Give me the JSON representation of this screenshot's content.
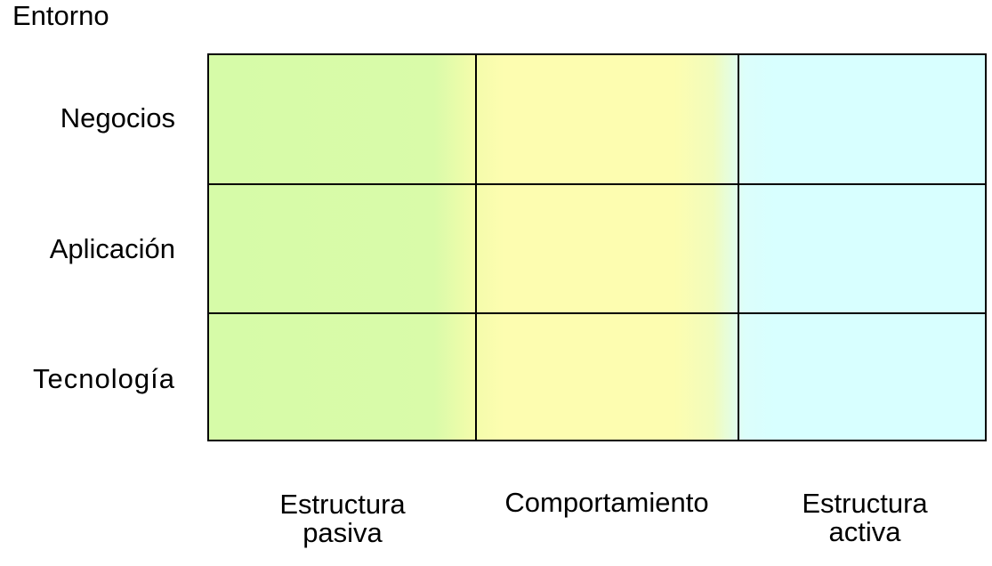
{
  "title": "Entorno",
  "rows": [
    "Negocios",
    "Aplicación",
    "Tecnología"
  ],
  "columns": [
    {
      "line1": "Estructura",
      "line2": "pasiva"
    },
    {
      "line1": "Comportamiento",
      "line2": ""
    },
    {
      "line1": "Estructura",
      "line2": "activa"
    }
  ],
  "colors": {
    "passive": "#d6fba8",
    "behavior": "#fdfdb0",
    "active": "#d8ffff",
    "border": "#000000"
  }
}
